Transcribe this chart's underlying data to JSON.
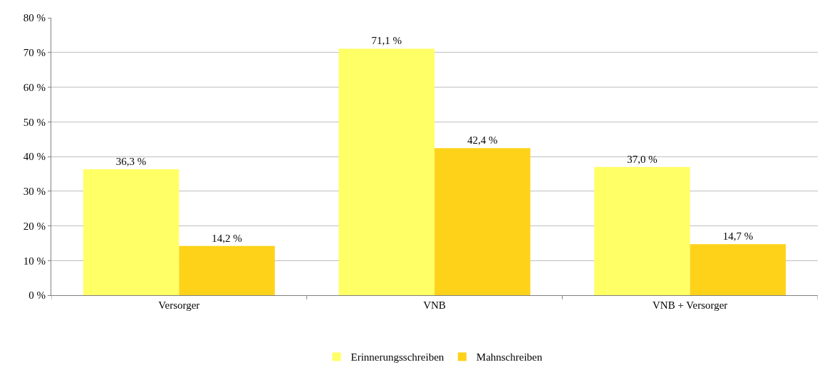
{
  "chart_data": {
    "type": "bar",
    "categories": [
      "Versorger",
      "VNB",
      "VNB + Versorger"
    ],
    "series": [
      {
        "name": "Erinnerungsschreiben",
        "color": "#ffff66",
        "values": [
          36.3,
          71.1,
          37.0
        ],
        "value_labels": [
          "36,3 %",
          "71,1 %",
          "37,0 %"
        ]
      },
      {
        "name": "Mahnschreiben",
        "color": "#ffd21a",
        "values": [
          14.2,
          42.4,
          14.7
        ],
        "value_labels": [
          "14,2 %",
          "42,4 %",
          "14,7 %"
        ]
      }
    ],
    "ylim": [
      0,
      80
    ],
    "yticks": [
      {
        "value": 0,
        "label": "0 %"
      },
      {
        "value": 10,
        "label": "10 %"
      },
      {
        "value": 20,
        "label": "20 %"
      },
      {
        "value": 30,
        "label": "30 %"
      },
      {
        "value": 40,
        "label": "40 %"
      },
      {
        "value": 50,
        "label": "50 %"
      },
      {
        "value": 60,
        "label": "60 %"
      },
      {
        "value": 70,
        "label": "70 %"
      },
      {
        "value": 80,
        "label": "80 %"
      }
    ],
    "grid": "y",
    "legend": "bottom"
  }
}
